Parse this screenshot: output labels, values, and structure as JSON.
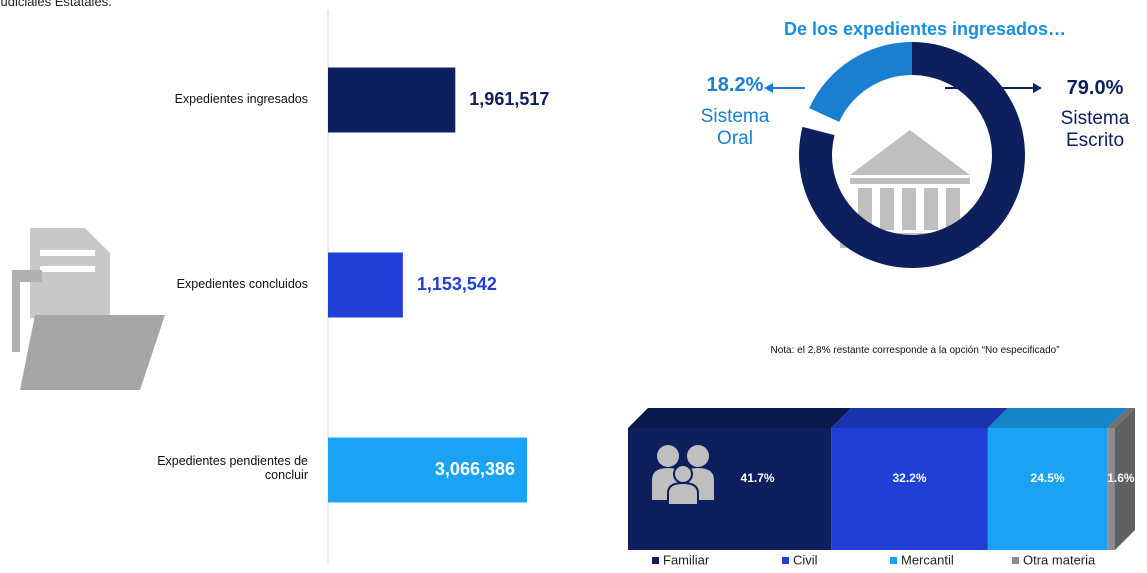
{
  "header_fragment": "Judiciales Estatales.",
  "chart_data": [
    {
      "type": "hbar",
      "categories": [
        "Expedientes ingresados",
        "Expedientes concluidos",
        "Expedientes pendientes de concluir"
      ],
      "values": [
        1961517,
        1153542,
        3066386
      ],
      "value_labels": [
        "1,961,517",
        "1,153,542",
        "3,066,386"
      ],
      "colors": [
        "#0d1f5c",
        "#1f3fd6",
        "#1aa3f5"
      ]
    },
    {
      "type": "donut",
      "title": "De los expedientes ingresados…",
      "categories": [
        "Sistema Escrito",
        "Sistema Oral"
      ],
      "values": [
        79.0,
        18.2
      ],
      "value_labels": [
        "79.0%",
        "18.2%"
      ],
      "colors": [
        "#0d1f5c",
        "#1a7fd0"
      ],
      "note": "Nota: el 2.8% restante corresponde a la opción “No especificado”"
    },
    {
      "type": "stacked",
      "series": [
        {
          "name": "Familiar",
          "color": "#0d1f5c",
          "values": [
            41.7
          ],
          "value_labels": [
            "41.7%"
          ]
        },
        {
          "name": "Civil",
          "color": "#1f3fd6",
          "values": [
            32.2
          ],
          "value_labels": [
            "32.2%"
          ]
        },
        {
          "name": "Mercantil",
          "color": "#1aa3f5",
          "values": [
            24.5
          ],
          "value_labels": [
            "24.5%"
          ]
        },
        {
          "name": "Otra materia",
          "color": "#8c8c8c",
          "values": [
            1.6
          ],
          "value_labels": [
            "1.6%"
          ]
        }
      ],
      "legend": "bottom"
    }
  ]
}
